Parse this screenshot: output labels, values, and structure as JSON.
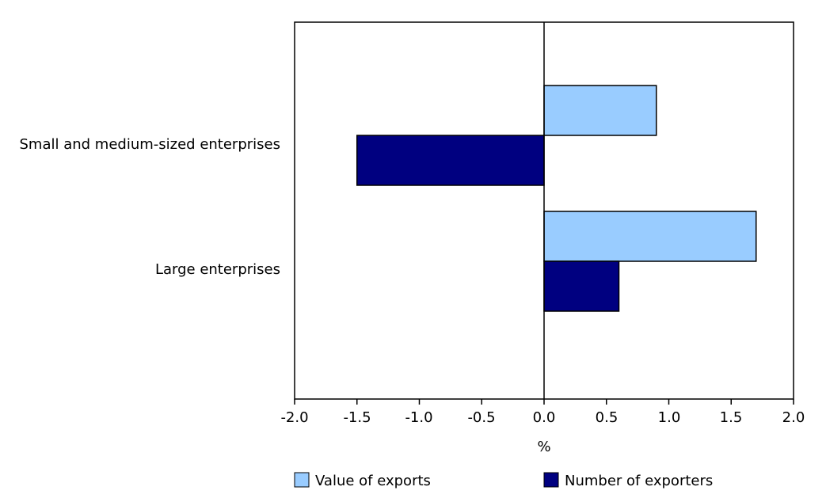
{
  "chart_data": {
    "type": "bar",
    "orientation": "horizontal",
    "title": "",
    "xlabel": "%",
    "ylabel": "",
    "xlim": [
      -2.0,
      2.0
    ],
    "xticks": [
      -2.0,
      -1.5,
      -1.0,
      -0.5,
      0.0,
      0.5,
      1.0,
      1.5,
      2.0
    ],
    "xtick_labels": [
      "-2.0",
      "-1.5",
      "-1.0",
      "-0.5",
      "0.0",
      "0.5",
      "1.0",
      "1.5",
      "2.0"
    ],
    "categories": [
      "Small and medium-sized enterprises",
      "Large enterprises"
    ],
    "series": [
      {
        "name": "Value of exports",
        "color": "#99ccff",
        "values": [
          0.9,
          1.7
        ]
      },
      {
        "name": "Number of exporters",
        "color": "#000080",
        "values": [
          -1.5,
          0.6
        ]
      }
    ],
    "grid": false,
    "legend_position": "bottom"
  }
}
